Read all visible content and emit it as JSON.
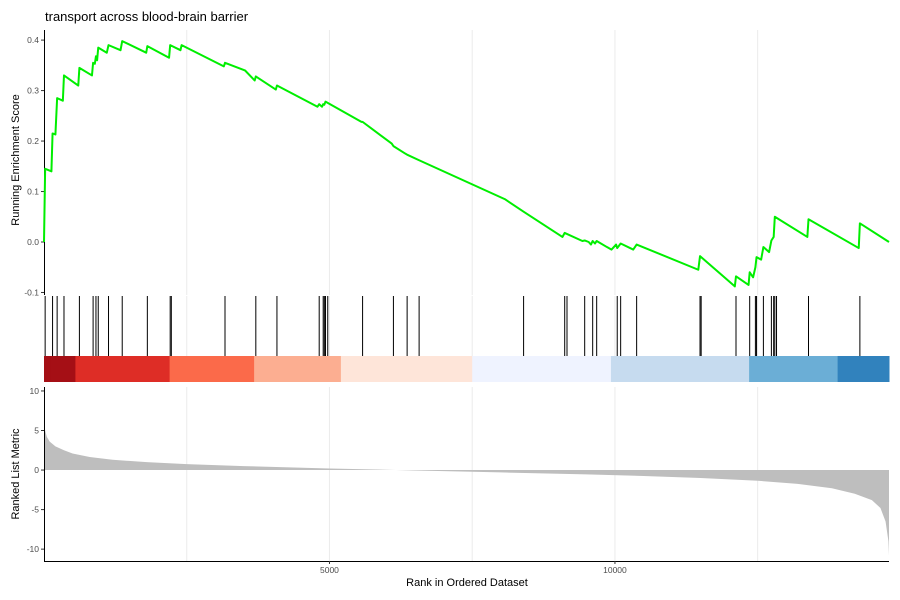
{
  "chart_data": {
    "type": "line",
    "title": "transport across blood-brain barrier",
    "xlabel": "Rank in Ordered Dataset",
    "n_genes": 14800,
    "colors": {
      "running_score": "#00ee00",
      "metric_fill": "#bebebe",
      "hits": "#000000",
      "gradient": [
        "#a50f15",
        "#de2d26",
        "#fb6a4a",
        "#fcae91",
        "#fee5d9",
        "#eff3ff",
        "#c6dbef",
        "#6baed6",
        "#3182bd"
      ]
    },
    "x_ticks": [
      {
        "value": 5000,
        "label": "5000"
      },
      {
        "value": 10000,
        "label": "10000"
      }
    ],
    "x_grid": [
      2500,
      5000,
      7500,
      10000,
      12500
    ],
    "grid": true,
    "running_score": {
      "ylabel": "Running Enrichment Score",
      "ylim": [
        -0.105,
        0.42
      ],
      "y_ticks": [
        {
          "value": 0.4,
          "label": "0.4"
        },
        {
          "value": 0.3,
          "label": "0.3"
        },
        {
          "value": 0.2,
          "label": "0.2"
        },
        {
          "value": 0.1,
          "label": "0.1"
        },
        {
          "value": 0.0,
          "label": "0.0"
        },
        {
          "value": -0.1,
          "label": "-0.1"
        }
      ],
      "points": [
        [
          0,
          0
        ],
        [
          20,
          0.145
        ],
        [
          130,
          0.14
        ],
        [
          150,
          0.215
        ],
        [
          200,
          0.213
        ],
        [
          230,
          0.285
        ],
        [
          330,
          0.28
        ],
        [
          350,
          0.33
        ],
        [
          600,
          0.31
        ],
        [
          620,
          0.345
        ],
        [
          840,
          0.33
        ],
        [
          860,
          0.355
        ],
        [
          890,
          0.353
        ],
        [
          910,
          0.368
        ],
        [
          930,
          0.36
        ],
        [
          950,
          0.385
        ],
        [
          1100,
          0.375
        ],
        [
          1130,
          0.39
        ],
        [
          1340,
          0.38
        ],
        [
          1370,
          0.398
        ],
        [
          1790,
          0.375
        ],
        [
          1810,
          0.388
        ],
        [
          2190,
          0.365
        ],
        [
          2210,
          0.39
        ],
        [
          2390,
          0.38
        ],
        [
          2410,
          0.39
        ],
        [
          3150,
          0.348
        ],
        [
          3170,
          0.355
        ],
        [
          3520,
          0.34
        ],
        [
          3690,
          0.32
        ],
        [
          3710,
          0.328
        ],
        [
          4060,
          0.302
        ],
        [
          4080,
          0.31
        ],
        [
          4790,
          0.268
        ],
        [
          4820,
          0.273
        ],
        [
          4870,
          0.268
        ],
        [
          4890,
          0.273
        ],
        [
          4910,
          0.272
        ],
        [
          4930,
          0.278
        ],
        [
          5560,
          0.238
        ],
        [
          5580,
          0.238
        ],
        [
          6090,
          0.195
        ],
        [
          6120,
          0.19
        ],
        [
          6330,
          0.175
        ],
        [
          6360,
          0.173
        ],
        [
          6570,
          0.162
        ],
        [
          8070,
          0.085
        ],
        [
          8400,
          0.06
        ],
        [
          9080,
          0.01
        ],
        [
          9120,
          0.018
        ],
        [
          9430,
          0.002
        ],
        [
          9470,
          0.003
        ],
        [
          9540,
          0
        ],
        [
          9580,
          -0.005
        ],
        [
          9610,
          0.002
        ],
        [
          9650,
          -0.003
        ],
        [
          9680,
          0.002
        ],
        [
          9860,
          -0.01
        ],
        [
          9940,
          -0.015
        ],
        [
          10020,
          -0.005
        ],
        [
          10040,
          -0.012
        ],
        [
          10100,
          -0.003
        ],
        [
          10320,
          -0.015
        ],
        [
          10380,
          -0.005
        ],
        [
          11460,
          -0.055
        ],
        [
          11490,
          -0.028
        ],
        [
          12100,
          -0.088
        ],
        [
          12120,
          -0.068
        ],
        [
          12340,
          -0.085
        ],
        [
          12360,
          -0.06
        ],
        [
          12420,
          -0.07
        ],
        [
          12460,
          -0.05
        ],
        [
          12480,
          -0.03
        ],
        [
          12560,
          -0.035
        ],
        [
          12600,
          -0.01
        ],
        [
          12700,
          -0.02
        ],
        [
          12740,
          0.003
        ],
        [
          12780,
          0.01
        ],
        [
          12800,
          0.05
        ],
        [
          13370,
          0.01
        ],
        [
          13390,
          0.045
        ],
        [
          14270,
          -0.012
        ],
        [
          14290,
          0.037
        ],
        [
          14800,
          0.0
        ]
      ]
    },
    "gene_hits": [
      20,
      150,
      230,
      350,
      620,
      860,
      910,
      950,
      1130,
      1370,
      1810,
      2210,
      2230,
      3170,
      3710,
      4080,
      4820,
      4890,
      4910,
      4930,
      4970,
      5580,
      6120,
      6360,
      6570,
      8400,
      9120,
      9160,
      9470,
      9610,
      9680,
      10040,
      10100,
      10380,
      11490,
      11510,
      12120,
      12360,
      12460,
      12480,
      12600,
      12740,
      12780,
      12800,
      12830,
      13390,
      14290
    ],
    "color_bar": [
      {
        "from": 0,
        "to": 110,
        "shade": 0
      },
      {
        "from": 110,
        "to": 550,
        "shade": 0
      },
      {
        "from": 550,
        "to": 2200,
        "shade": 1
      },
      {
        "from": 2200,
        "to": 3680,
        "shade": 2
      },
      {
        "from": 3680,
        "to": 5200,
        "shade": 3
      },
      {
        "from": 5200,
        "to": 7500,
        "shade": 4
      },
      {
        "from": 7500,
        "to": 9930,
        "shade": 5
      },
      {
        "from": 9930,
        "to": 12350,
        "shade": 6
      },
      {
        "from": 12350,
        "to": 13900,
        "shade": 7
      },
      {
        "from": 13900,
        "to": 14800,
        "shade": 8
      }
    ],
    "ranked_list_metric": {
      "ylabel": "Ranked List Metric",
      "ylim": [
        -11.5,
        10.5
      ],
      "y_ticks": [
        {
          "value": 10,
          "label": "10"
        },
        {
          "value": 5,
          "label": "5"
        },
        {
          "value": 0,
          "label": "0"
        },
        {
          "value": -5,
          "label": "-5"
        },
        {
          "value": -10,
          "label": "-10"
        }
      ],
      "points": [
        [
          0,
          6.5
        ],
        [
          20,
          5.0
        ],
        [
          50,
          4.2
        ],
        [
          100,
          3.6
        ],
        [
          200,
          3.0
        ],
        [
          350,
          2.5
        ],
        [
          500,
          2.1
        ],
        [
          800,
          1.65
        ],
        [
          1200,
          1.3
        ],
        [
          1800,
          1.0
        ],
        [
          2500,
          0.75
        ],
        [
          3500,
          0.5
        ],
        [
          5000,
          0.2
        ],
        [
          6500,
          -0.05
        ],
        [
          8000,
          -0.3
        ],
        [
          9500,
          -0.55
        ],
        [
          10500,
          -0.75
        ],
        [
          11500,
          -1.0
        ],
        [
          12500,
          -1.35
        ],
        [
          13200,
          -1.75
        ],
        [
          13800,
          -2.3
        ],
        [
          14200,
          -3.0
        ],
        [
          14500,
          -3.8
        ],
        [
          14650,
          -4.8
        ],
        [
          14740,
          -6.5
        ],
        [
          14790,
          -9.0
        ],
        [
          14800,
          -10.8
        ]
      ]
    }
  }
}
